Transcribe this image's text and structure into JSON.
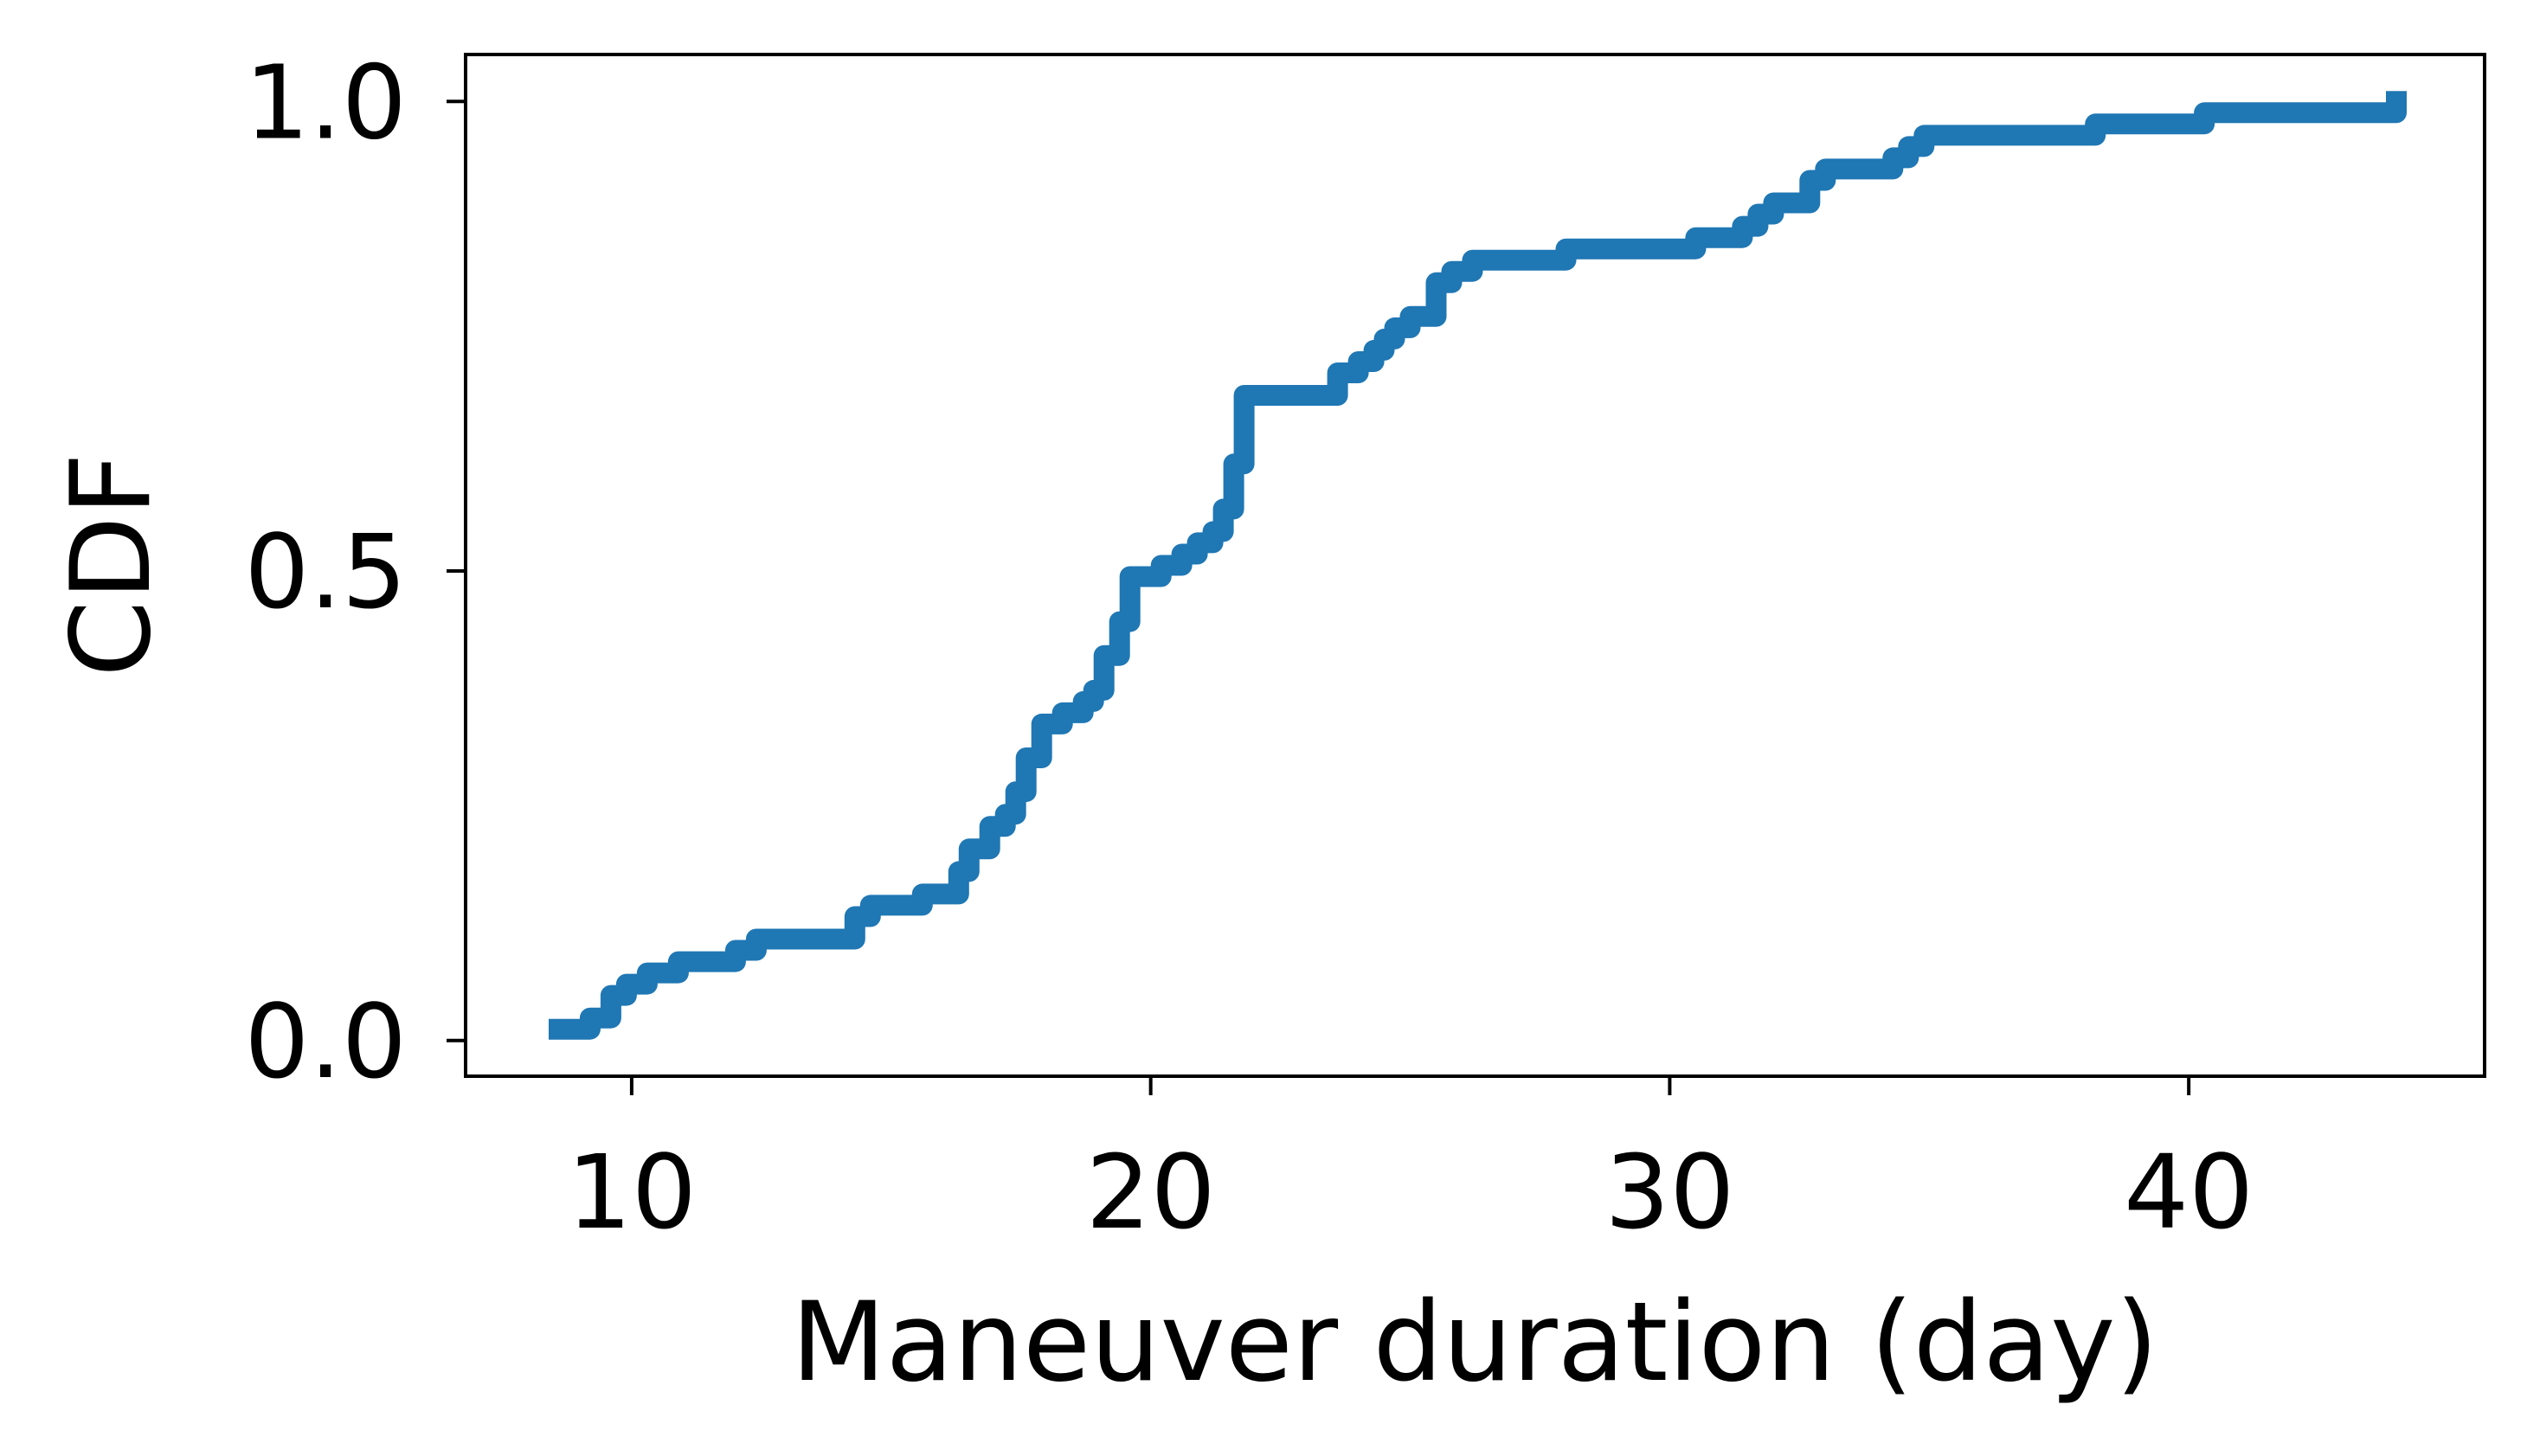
{
  "chart_data": {
    "type": "line",
    "title": "",
    "xlabel": "Maneuver duration (day)",
    "ylabel": "CDF",
    "xlim": [
      6.8,
      45.7
    ],
    "ylim": [
      -0.038,
      1.05
    ],
    "xticks": [
      10,
      20,
      30,
      40
    ],
    "xtick_labels": [
      "10",
      "20",
      "30",
      "40"
    ],
    "yticks": [
      0.0,
      0.5,
      1.0
    ],
    "ytick_labels": [
      "0.0",
      "0.5",
      "1.0"
    ],
    "grid": false,
    "legend": "none",
    "step": true,
    "series": [
      {
        "color": "#1f77b4",
        "x": [
          8.6,
          9.2,
          9.6,
          9.9,
          10.3,
          10.9,
          12.0,
          12.4,
          14.3,
          14.6,
          15.6,
          16.3,
          16.5,
          16.9,
          17.2,
          17.4,
          17.6,
          17.9,
          18.3,
          18.7,
          18.9,
          19.1,
          19.4,
          19.6,
          20.2,
          20.6,
          20.9,
          21.2,
          21.4,
          21.6,
          21.8,
          23.6,
          24.0,
          24.3,
          24.5,
          24.7,
          25.0,
          25.5,
          25.8,
          26.2,
          28.0,
          30.5,
          31.4,
          31.7,
          32.0,
          32.7,
          33.0,
          34.3,
          34.6,
          34.9,
          38.2,
          40.3,
          44.0
        ],
        "y": [
          0.012,
          0.024,
          0.048,
          0.06,
          0.072,
          0.084,
          0.096,
          0.108,
          0.132,
          0.144,
          0.156,
          0.18,
          0.204,
          0.228,
          0.241,
          0.265,
          0.301,
          0.337,
          0.349,
          0.361,
          0.373,
          0.41,
          0.446,
          0.494,
          0.506,
          0.518,
          0.53,
          0.542,
          0.566,
          0.614,
          0.687,
          0.711,
          0.723,
          0.735,
          0.747,
          0.759,
          0.771,
          0.807,
          0.819,
          0.831,
          0.843,
          0.855,
          0.867,
          0.88,
          0.892,
          0.916,
          0.928,
          0.94,
          0.952,
          0.964,
          0.976,
          0.988,
          1.0
        ]
      }
    ]
  }
}
